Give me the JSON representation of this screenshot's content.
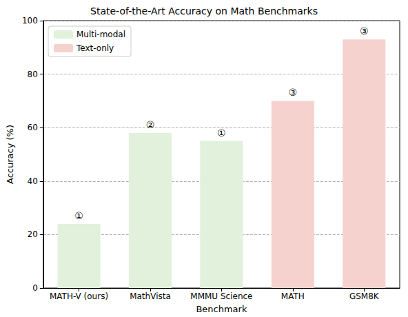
{
  "chart_data": {
    "type": "bar",
    "title": "State-of-the-Art Accuracy on Math Benchmarks",
    "x_label": "Benchmark",
    "y_label": "Accuracy (%)",
    "categories": [
      "MATH-V (ours)",
      "MathVista",
      "MMMU Science",
      "MATH",
      "GSM8K"
    ],
    "series": [
      {
        "name": "Multi-modal",
        "color": "#e1f1db",
        "values": [
          24,
          58,
          55,
          null,
          null
        ]
      },
      {
        "name": "Text-only",
        "color": "#f6d2ce",
        "values": [
          null,
          null,
          null,
          70,
          93
        ]
      }
    ],
    "annotations": [
      "①",
      "②",
      "①",
      "③",
      "③"
    ],
    "ylim": [
      0,
      100
    ],
    "yticks": [
      0,
      20,
      40,
      60,
      80,
      100
    ],
    "grid": true,
    "legend": "upper left"
  }
}
